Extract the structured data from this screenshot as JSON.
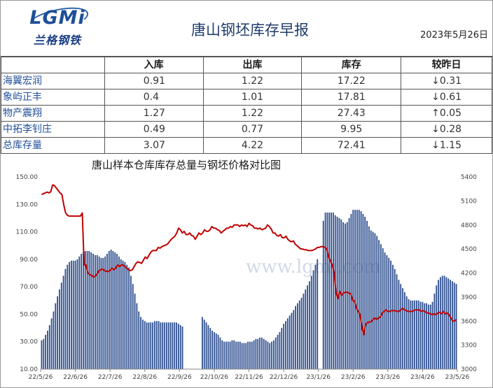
{
  "header": {
    "logo_text": "LGMi",
    "logo_cn": "兰格钢铁",
    "title": "唐山钢坯库存早报",
    "date": "2023年5月26日"
  },
  "table": {
    "headers": [
      "",
      "入库",
      "出库",
      "库存",
      "较昨日"
    ],
    "rows": [
      {
        "name": "海翼宏润",
        "in": "0.91",
        "out": "1.22",
        "stock": "17.22",
        "change": "↓0.31",
        "dir": "down"
      },
      {
        "name": "象屿正丰",
        "in": "0.4",
        "out": "1.01",
        "stock": "17.81",
        "change": "↓0.61",
        "dir": "down"
      },
      {
        "name": "物产震翔",
        "in": "1.27",
        "out": "1.22",
        "stock": "27.43",
        "change": "↑0.05",
        "dir": "up"
      },
      {
        "name": "中拓李钊庄",
        "in": "0.49",
        "out": "0.77",
        "stock": "9.95",
        "change": "↓0.28",
        "dir": "down"
      },
      {
        "name": "总库存量",
        "in": "3.07",
        "out": "4.22",
        "stock": "72.41",
        "change": "↓1.15",
        "dir": "down"
      }
    ]
  },
  "chart_data": {
    "type": "bar+line",
    "title": "唐山样本仓库库存总量与钢坯价格对比图",
    "watermark": "www.lgmi.com",
    "x_labels": [
      "22/5/26",
      "22/6/26",
      "22/7/26",
      "22/8/26",
      "22/9/26",
      "22/10/26",
      "22/11/26",
      "22/12/26",
      "23/1/26",
      "23/2/26",
      "23/3/26",
      "23/4/26",
      "23/5/26"
    ],
    "y_left": {
      "min": 10,
      "max": 150,
      "ticks": [
        "10.00",
        "30.00",
        "50.00",
        "70.00",
        "90.00",
        "110.00",
        "130.00",
        "150.00"
      ]
    },
    "y_right": {
      "min": 3000,
      "max": 5400,
      "ticks": [
        "3000",
        "3300",
        "3600",
        "3900",
        "4200",
        "4500",
        "4800",
        "5100",
        "5400"
      ]
    },
    "bar_color": "#2e4f8f",
    "line_color": "#c00000",
    "bars": [
      31,
      32,
      35,
      38,
      42,
      47,
      52,
      58,
      63,
      68,
      73,
      78,
      83,
      86,
      88,
      89,
      89,
      89,
      90,
      92,
      94,
      95,
      96,
      96,
      96,
      95,
      94,
      93,
      93,
      92,
      91,
      91,
      92,
      94,
      96,
      97,
      96,
      95,
      94,
      92,
      90,
      89,
      88,
      86,
      84,
      78,
      72,
      65,
      58,
      52,
      48,
      46,
      45,
      44,
      44,
      44,
      44,
      45,
      45,
      45,
      44,
      44,
      44,
      44,
      44,
      44,
      44,
      44,
      44,
      43,
      42,
      41,
      0,
      0,
      0,
      0,
      0,
      0,
      0,
      0,
      0,
      48,
      46,
      44,
      42,
      40,
      38,
      37,
      36,
      35,
      33,
      31,
      30,
      30,
      30,
      30,
      31,
      31,
      30,
      30,
      30,
      29,
      29,
      29,
      30,
      30,
      30,
      31,
      32,
      32,
      33,
      33,
      32,
      31,
      30,
      29,
      30,
      31,
      33,
      35,
      37,
      40,
      43,
      45,
      47,
      49,
      51,
      53,
      56,
      58,
      60,
      62,
      65,
      68,
      71,
      74,
      78,
      82,
      86,
      90,
      0,
      0,
      118,
      124,
      124,
      124,
      124,
      124,
      122,
      121,
      120,
      119,
      117,
      116,
      117,
      120,
      123,
      126,
      126,
      126,
      126,
      125,
      123,
      121,
      118,
      114,
      111,
      110,
      109,
      107,
      104,
      101,
      98,
      95,
      93,
      91,
      89,
      86,
      83,
      79,
      75,
      72,
      69,
      66,
      63,
      61,
      60,
      60,
      60,
      60,
      60,
      59,
      59,
      58,
      58,
      57,
      57,
      59,
      65,
      71,
      75,
      77,
      78,
      78,
      77,
      76,
      75,
      74,
      73,
      72
    ],
    "line": [
      5180,
      5190,
      5200,
      5210,
      5200,
      5215,
      5300,
      5290,
      5260,
      5230,
      5200,
      5180,
      5050,
      4950,
      4920,
      4910,
      4910,
      4910,
      4910,
      4910,
      4910,
      4910,
      4950,
      4300,
      4300,
      4200,
      4180,
      4170,
      4150,
      4160,
      4190,
      4230,
      4240,
      4250,
      4230,
      4220,
      4220,
      4230,
      4260,
      4240,
      4260,
      4300,
      4280,
      4300,
      4300,
      4280,
      4260,
      4240,
      4230,
      4240,
      4280,
      4320,
      4340,
      4330,
      4320,
      4360,
      4400,
      4380,
      4420,
      4460,
      4480,
      4480,
      4480,
      4520,
      4510,
      4530,
      4540,
      4550,
      4560,
      4590,
      4620,
      4640,
      4660,
      4700,
      4760,
      4740,
      4700,
      4720,
      4680,
      4680,
      4700,
      4670,
      4660,
      4620,
      4660,
      4700,
      4680,
      4700,
      4740,
      4720,
      4720,
      4740,
      4780,
      4760,
      4760,
      4740,
      4730,
      4700,
      4720,
      4740,
      4760,
      4760,
      4780,
      4770,
      4800,
      4800,
      4800,
      4780,
      4800,
      4790,
      4800,
      4780,
      4820,
      4800,
      4790,
      4760,
      4760,
      4750,
      4760,
      4740,
      4750,
      4760,
      4800,
      4780,
      4750,
      4700,
      4700,
      4670,
      4660,
      4680,
      4640,
      4640,
      4660,
      4620,
      4600,
      4590,
      4600,
      4560,
      4540,
      4520,
      4500,
      4500,
      4490,
      4490,
      4480,
      4480,
      4480,
      4490,
      4500,
      4520,
      4520,
      4530,
      4530,
      4520,
      4500,
      4400,
      4350,
      4300,
      4200,
      3960,
      3880,
      3970,
      3920,
      3950,
      3960,
      3960,
      3950,
      3940,
      3860,
      3850,
      3760,
      3720,
      3680,
      3520,
      3430,
      3560,
      3580,
      3590,
      3590,
      3620,
      3640,
      3620,
      3640,
      3650,
      3700,
      3720,
      3740,
      3720,
      3720,
      3730,
      3730,
      3730,
      3720,
      3720,
      3740,
      3760,
      3740,
      3730,
      3720,
      3720,
      3720,
      3730,
      3740,
      3740,
      3740,
      3720,
      3730,
      3720,
      3700,
      3700,
      3690,
      3680,
      3690,
      3680,
      3700,
      3710,
      3690,
      3720,
      3690,
      3700,
      3680,
      3640,
      3600,
      3600,
      3620
    ]
  }
}
